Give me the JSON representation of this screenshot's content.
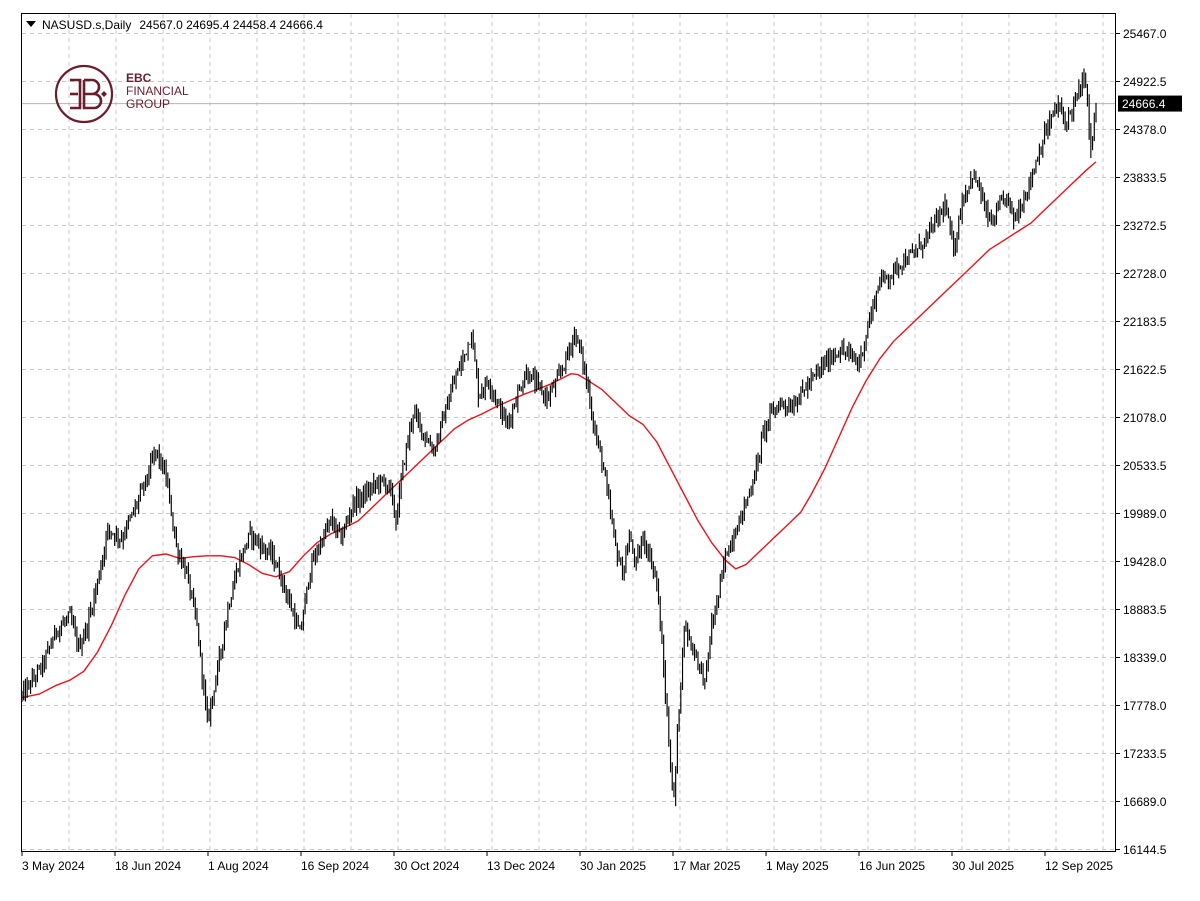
{
  "header": {
    "symbol": "NASUSD.s,Daily",
    "ohlc": "24567.0 24695.4 24458.4 24666.4"
  },
  "logo": {
    "line1": "EBC",
    "line2": "FINANCIAL",
    "line3": "GROUP",
    "color": "#6a1d2c"
  },
  "colors": {
    "candles": "#000000",
    "moving_average": "#e8141b",
    "grid": "#c8c8c8",
    "current_price_line": "#b4b4b4",
    "price_tag_bg": "#000000",
    "price_tag_text": "#ffffff"
  },
  "chart_data": {
    "type": "line",
    "xlabel": "",
    "ylabel": "",
    "grid": true,
    "price_axis_labels": [
      "25467.0",
      "24922.5",
      "24378.0",
      "23833.5",
      "23272.5",
      "22728.0",
      "22183.5",
      "21622.5",
      "21078.0",
      "20533.5",
      "19989.0",
      "19428.0",
      "18883.5",
      "18339.0",
      "17778.0",
      "17233.5",
      "16689.0",
      "16144.5"
    ],
    "date_axis_labels": [
      "3 May 2024",
      "18 Jun 2024",
      "1 Aug 2024",
      "16 Sep 2024",
      "30 Oct 2024",
      "13 Dec 2024",
      "30 Jan 2025",
      "17 Mar 2025",
      "1 May 2025",
      "16 Jun 2025",
      "30 Jul 2025",
      "12 Sep 2025"
    ],
    "ylim": [
      16144.5,
      25467.0
    ],
    "current_price": "24666.4",
    "current_price_value": 24666.4,
    "series": [
      {
        "type": "close",
        "values": [
          [
            0,
            17900
          ],
          [
            12,
            18250
          ],
          [
            20,
            18650
          ],
          [
            28,
            18800
          ],
          [
            33,
            18450
          ],
          [
            38,
            18700
          ],
          [
            44,
            19200
          ],
          [
            50,
            19800
          ],
          [
            58,
            19700
          ],
          [
            66,
            20050
          ],
          [
            73,
            20400
          ],
          [
            78,
            20700
          ],
          [
            84,
            20400
          ],
          [
            90,
            19600
          ],
          [
            96,
            19300
          ],
          [
            102,
            18700
          ],
          [
            108,
            17600
          ],
          [
            114,
            18200
          ],
          [
            120,
            18900
          ],
          [
            126,
            19400
          ],
          [
            133,
            19750
          ],
          [
            140,
            19600
          ],
          [
            146,
            19500
          ],
          [
            152,
            19200
          ],
          [
            157,
            18900
          ],
          [
            162,
            18600
          ],
          [
            168,
            19350
          ],
          [
            174,
            19650
          ],
          [
            180,
            19900
          ],
          [
            186,
            19700
          ],
          [
            193,
            20100
          ],
          [
            200,
            20200
          ],
          [
            208,
            20350
          ],
          [
            214,
            20300
          ],
          [
            218,
            19900
          ],
          [
            222,
            20500
          ],
          [
            228,
            21150
          ],
          [
            234,
            20900
          ],
          [
            240,
            20700
          ],
          [
            246,
            21100
          ],
          [
            252,
            21500
          ],
          [
            258,
            21800
          ],
          [
            262,
            22050
          ],
          [
            266,
            21350
          ],
          [
            272,
            21500
          ],
          [
            278,
            21200
          ],
          [
            283,
            21000
          ],
          [
            288,
            21300
          ],
          [
            294,
            21600
          ],
          [
            300,
            21450
          ],
          [
            306,
            21300
          ],
          [
            312,
            21500
          ],
          [
            318,
            21800
          ],
          [
            322,
            22050
          ],
          [
            326,
            21800
          ],
          [
            330,
            21400
          ],
          [
            334,
            20900
          ],
          [
            338,
            20600
          ],
          [
            342,
            20100
          ],
          [
            346,
            19600
          ],
          [
            350,
            19300
          ],
          [
            354,
            19700
          ],
          [
            358,
            19400
          ],
          [
            362,
            19700
          ],
          [
            366,
            19500
          ],
          [
            370,
            19200
          ],
          [
            374,
            18200
          ],
          [
            378,
            17100
          ],
          [
            380,
            16700
          ],
          [
            383,
            17800
          ],
          [
            386,
            18700
          ],
          [
            390,
            18500
          ],
          [
            394,
            18300
          ],
          [
            398,
            18050
          ],
          [
            402,
            18700
          ],
          [
            406,
            19050
          ],
          [
            410,
            19500
          ],
          [
            416,
            19800
          ],
          [
            422,
            20100
          ],
          [
            428,
            20500
          ],
          [
            432,
            20900
          ],
          [
            436,
            21100
          ],
          [
            442,
            21250
          ],
          [
            448,
            21200
          ],
          [
            454,
            21350
          ],
          [
            460,
            21500
          ],
          [
            468,
            21700
          ],
          [
            476,
            21850
          ],
          [
            482,
            21800
          ],
          [
            488,
            21700
          ],
          [
            494,
            22200
          ],
          [
            500,
            22650
          ],
          [
            506,
            22700
          ],
          [
            512,
            22850
          ],
          [
            520,
            22950
          ],
          [
            526,
            23100
          ],
          [
            532,
            23300
          ],
          [
            538,
            23500
          ],
          [
            543,
            23000
          ],
          [
            548,
            23550
          ],
          [
            554,
            23850
          ],
          [
            558,
            23700
          ],
          [
            562,
            23400
          ],
          [
            566,
            23300
          ],
          [
            570,
            23500
          ],
          [
            574,
            23600
          ],
          [
            578,
            23350
          ],
          [
            582,
            23500
          ],
          [
            588,
            23800
          ],
          [
            594,
            24200
          ],
          [
            600,
            24500
          ],
          [
            604,
            24650
          ],
          [
            608,
            24450
          ],
          [
            612,
            24600
          ],
          [
            616,
            24800
          ],
          [
            620,
            24950
          ],
          [
            623,
            24100
          ],
          [
            626,
            24666.4
          ]
        ]
      },
      {
        "type": "moving_average",
        "values": [
          [
            0,
            17880
          ],
          [
            10,
            17920
          ],
          [
            20,
            18020
          ],
          [
            28,
            18080
          ],
          [
            36,
            18180
          ],
          [
            44,
            18400
          ],
          [
            52,
            18700
          ],
          [
            60,
            19050
          ],
          [
            68,
            19350
          ],
          [
            76,
            19500
          ],
          [
            84,
            19520
          ],
          [
            92,
            19470
          ],
          [
            100,
            19490
          ],
          [
            108,
            19500
          ],
          [
            116,
            19500
          ],
          [
            124,
            19480
          ],
          [
            132,
            19400
          ],
          [
            140,
            19300
          ],
          [
            148,
            19260
          ],
          [
            156,
            19320
          ],
          [
            164,
            19500
          ],
          [
            172,
            19650
          ],
          [
            180,
            19750
          ],
          [
            188,
            19820
          ],
          [
            196,
            19900
          ],
          [
            204,
            20050
          ],
          [
            212,
            20200
          ],
          [
            220,
            20350
          ],
          [
            228,
            20500
          ],
          [
            236,
            20650
          ],
          [
            244,
            20800
          ],
          [
            252,
            20950
          ],
          [
            260,
            21050
          ],
          [
            268,
            21120
          ],
          [
            276,
            21200
          ],
          [
            284,
            21270
          ],
          [
            292,
            21340
          ],
          [
            300,
            21400
          ],
          [
            308,
            21460
          ],
          [
            314,
            21520
          ],
          [
            320,
            21580
          ],
          [
            324,
            21570
          ],
          [
            330,
            21500
          ],
          [
            338,
            21400
          ],
          [
            346,
            21250
          ],
          [
            354,
            21100
          ],
          [
            362,
            21000
          ],
          [
            370,
            20800
          ],
          [
            378,
            20500
          ],
          [
            386,
            20200
          ],
          [
            394,
            19900
          ],
          [
            402,
            19650
          ],
          [
            410,
            19450
          ],
          [
            416,
            19350
          ],
          [
            422,
            19400
          ],
          [
            430,
            19550
          ],
          [
            438,
            19700
          ],
          [
            446,
            19850
          ],
          [
            454,
            20000
          ],
          [
            460,
            20200
          ],
          [
            468,
            20500
          ],
          [
            476,
            20850
          ],
          [
            484,
            21200
          ],
          [
            492,
            21500
          ],
          [
            500,
            21750
          ],
          [
            508,
            21950
          ],
          [
            516,
            22100
          ],
          [
            524,
            22250
          ],
          [
            532,
            22400
          ],
          [
            540,
            22550
          ],
          [
            548,
            22700
          ],
          [
            556,
            22850
          ],
          [
            564,
            23000
          ],
          [
            572,
            23100
          ],
          [
            580,
            23200
          ],
          [
            588,
            23300
          ],
          [
            596,
            23450
          ],
          [
            604,
            23600
          ],
          [
            612,
            23750
          ],
          [
            620,
            23900
          ],
          [
            626,
            24000
          ]
        ]
      }
    ]
  }
}
